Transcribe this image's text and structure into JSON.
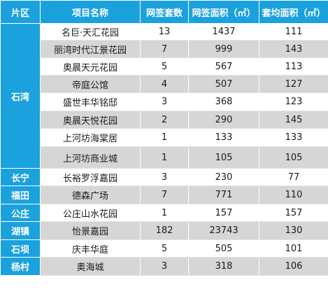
{
  "headers": {
    "district": "片区",
    "project": "项目名称",
    "units": "网签套数",
    "area": "网签面积（㎡）",
    "avg": "套均面积（㎡）"
  },
  "groups": [
    {
      "district": "石湾",
      "rows": [
        {
          "project": "名巨·天汇花园",
          "units": "13",
          "area": "1437",
          "avg": "111"
        },
        {
          "project": "丽湾时代江景花园",
          "units": "7",
          "area": "999",
          "avg": "143"
        },
        {
          "project": "奥晨天元花园",
          "units": "5",
          "area": "567",
          "avg": "113"
        },
        {
          "project": "帝庭公馆",
          "units": "4",
          "area": "507",
          "avg": "127"
        },
        {
          "project": "盛世丰华铭邸",
          "units": "3",
          "area": "368",
          "avg": "123"
        },
        {
          "project": "奥晨天悦花园",
          "units": "2",
          "area": "290",
          "avg": "145"
        },
        {
          "project": "上河坊海棠居",
          "units": "1",
          "area": "133",
          "avg": "133"
        },
        {
          "project": "上河坊商业城",
          "units": "1",
          "area": "105",
          "avg": "105"
        }
      ]
    },
    {
      "district": "长宁",
      "rows": [
        {
          "project": "长裕罗浮嘉园",
          "units": "3",
          "area": "230",
          "avg": "77"
        }
      ]
    },
    {
      "district": "福田",
      "rows": [
        {
          "project": "德森广场",
          "units": "7",
          "area": "771",
          "avg": "110"
        }
      ]
    },
    {
      "district": "公庄",
      "rows": [
        {
          "project": "公庄山水花园",
          "units": "1",
          "area": "157",
          "avg": "157"
        }
      ]
    },
    {
      "district": "湖镇",
      "rows": [
        {
          "project": "怡景嘉园",
          "units": "182",
          "area": "23743",
          "avg": "130"
        }
      ]
    },
    {
      "district": "石坝",
      "rows": [
        {
          "project": "庆丰华庭",
          "units": "5",
          "area": "505",
          "avg": "101"
        }
      ]
    },
    {
      "district": "杨村",
      "rows": [
        {
          "project": "奥海城",
          "units": "3",
          "area": "318",
          "avg": "106"
        }
      ]
    }
  ]
}
